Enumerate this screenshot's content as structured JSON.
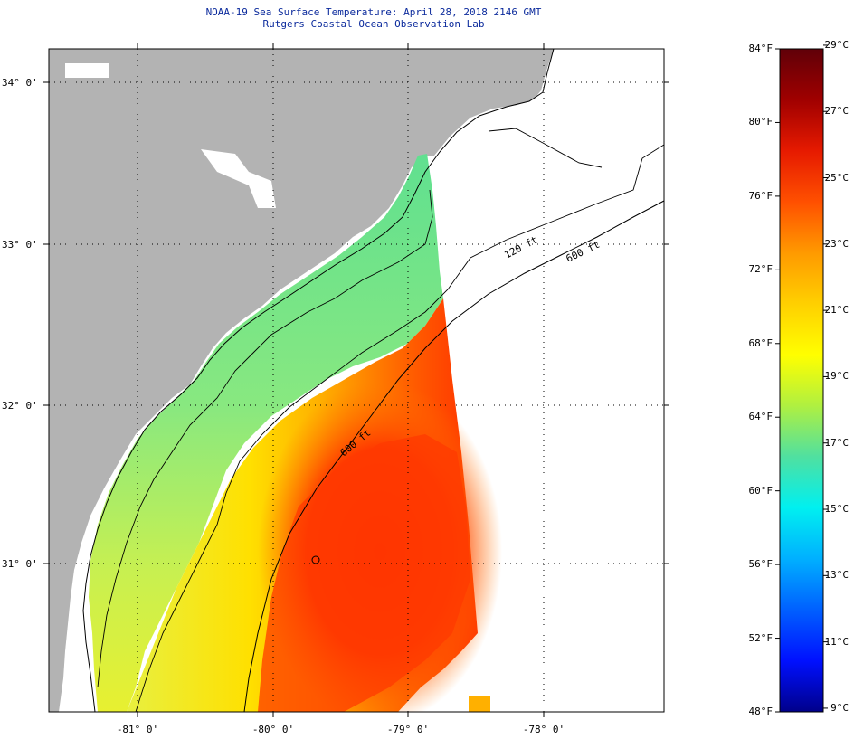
{
  "header": {
    "title": "NOAA-19 Sea Surface Temperature:  April 28, 2018 2146 GMT",
    "subtitle": "Rutgers Coastal Ocean Observation Lab"
  },
  "map": {
    "lat_labels": [
      "34° 0'",
      "33° 0'",
      "32° 0'",
      "31° 0'"
    ],
    "lon_labels": [
      "-81° 0'",
      "-80° 0'",
      "-79° 0'",
      "-78° 0'"
    ],
    "isobath_labels": [
      "120 ft",
      "600 ft",
      "600 ft"
    ],
    "colors": {
      "land": "#b3b3b3",
      "no_data": "#ffffff",
      "coast": "#000000"
    }
  },
  "colorbar": {
    "fahrenheit": [
      "84°F",
      "80°F",
      "76°F",
      "72°F",
      "68°F",
      "64°F",
      "60°F",
      "56°F",
      "52°F",
      "48°F"
    ],
    "celsius": [
      "29°C",
      "27°C",
      "25°C",
      "23°C",
      "21°C",
      "19°C",
      "17°C",
      "15°C",
      "13°C",
      "11°C",
      "9°C"
    ],
    "gradient_stops": [
      "#600008",
      "#a00000",
      "#e61a00",
      "#ff5000",
      "#ff9a00",
      "#ffd000",
      "#ffff00",
      "#b0f040",
      "#50e0a0",
      "#00f0f0",
      "#00b0ff",
      "#0060ff",
      "#0010ff",
      "#00008a"
    ]
  }
}
